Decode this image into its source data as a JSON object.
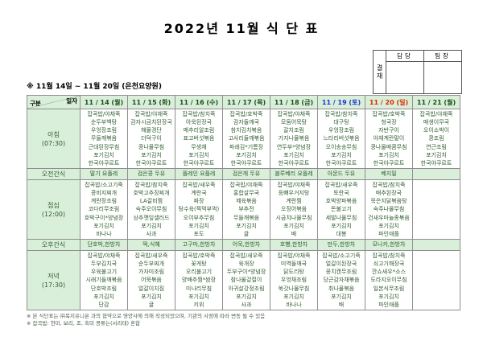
{
  "title": "2022년 11월 식 단 표",
  "subtitle": "※  11월 14일 ~ 11월 20일 (은천요양원)",
  "approval": {
    "label": "결재",
    "columns": [
      "담당",
      "팀장"
    ]
  },
  "colors": {
    "header_bg": "#d9efd9",
    "grid": "#8e8e8e",
    "date_default": "#1d4d1d",
    "date_sat": "#1f35cf",
    "date_sun": "#e02800",
    "menu_text": "#2f5d2f"
  },
  "table": {
    "corner": {
      "top": "일자",
      "bottom": "구분"
    },
    "days": [
      {
        "label": "11 / 14 (월)",
        "color": "default"
      },
      {
        "label": "11 / 15 (화)",
        "color": "default"
      },
      {
        "label": "11 / 16 (수)",
        "color": "default"
      },
      {
        "label": "11 / 17 (목)",
        "color": "default"
      },
      {
        "label": "11 / 18 (금)",
        "color": "default"
      },
      {
        "label": "11 / 19 (토)",
        "color": "sat"
      },
      {
        "label": "11 / 20 (일)",
        "color": "sun"
      },
      {
        "label": "11 / 21 (월)",
        "color": "default"
      }
    ],
    "rows": [
      {
        "label": "아침",
        "time": "(07:30)",
        "type": "meal",
        "cells": [
          [
            "잡곡밥/야채죽",
            "순두부백탕",
            "우엉장조림",
            "무들깨볶음",
            "근대된장무침",
            "포기김치",
            "한국야쿠르트"
          ],
          [
            "잡곡밥/야채죽",
            "감자시금치된장국",
            "해물경단",
            "더덕구이",
            "콩나물무침",
            "포기김치",
            "한국야쿠르트"
          ],
          [
            "잡곡밥/참치죽",
            "아욱된장국",
            "메추리알조림",
            "표고버섯볶음",
            "무생채",
            "포기김치",
            "한국야쿠르트"
          ],
          [
            "잡곡밥/호박죽",
            "감자들깨국",
            "참치김치볶음",
            "고사리들깨볶음",
            "파래김*기름장",
            "포기김치",
            "한국야쿠르트"
          ],
          [
            "잡곡밥/야채죽",
            "모둠어묵탕",
            "갈치조림",
            "가지나물볶음",
            "연두부*양념장",
            "포기김치",
            "한국야쿠르트"
          ],
          [
            "잡곡밥/참치죽",
            "대구탕",
            "우엉장조림",
            "느타리버섯볶음",
            "오이송송무침",
            "포기김치",
            "한국야쿠르트"
          ],
          [
            "잡곡밥/호박죽",
            "청국장",
            "자반구이",
            "야채계란말이",
            "콩나물매콤무침",
            "포기김치",
            "한국야쿠르트"
          ],
          [
            "잡곡밥/야채죽",
            "매생이무국",
            "오이소박이",
            "콩조림",
            "연근조림",
            "포기김치",
            "한국야쿠르트"
          ]
        ]
      },
      {
        "label": "오전간식",
        "type": "snack",
        "cells": [
          [
            "딸기 요플레"
          ],
          [
            "검은콩 두유"
          ],
          [
            "플레인 요플레"
          ],
          [
            "검은깨 두유"
          ],
          [
            "블루베리 요플레"
          ],
          [
            "아몬드 두유"
          ],
          [
            "베지밀"
          ],
          []
        ]
      },
      {
        "label": "점심",
        "time": "(12:00)",
        "type": "meal",
        "cells": [
          [
            "잡곡밥/소고기죽",
            "콩비지찌개",
            "계란장조림",
            "코다리무조림",
            "호박구이*양념장",
            "포기김치",
            "바나나"
          ],
          [
            "잡곡밥/참치죽",
            "호박고추장찌개",
            "LA갈비찜",
            "숙주오이무침",
            "상추깻잎샐러드",
            "포기김치",
            "사과"
          ],
          [
            "잡곡밥/새우죽",
            "계란국",
            "짜장",
            "탕수육(찍먹부먹)",
            "오이부추무침",
            "포기김치",
            "포도"
          ],
          [
            "잡곡밥/야채죽",
            "홍합살무국",
            "제육볶음",
            "부추전",
            "무들깨볶음",
            "포기김치",
            "귤"
          ],
          [
            "잡곡밥/야채죽",
            "등뼈우거지탕",
            "계란찜",
            "오징어볶음",
            "시금치나물무침",
            "포기김치",
            "배"
          ],
          [
            "잡곡밥/새우죽",
            "토란국",
            "호박양파볶음",
            "돈불고기",
            "세발나물무침",
            "포기김치",
            "대봉"
          ],
          [
            "잡곡밥/참치죽",
            "배추된장국",
            "묵은지닭볶음탕",
            "숙주나물무침",
            "건새우마늘종볶음",
            "포기김치",
            "파인애플"
          ],
          []
        ]
      },
      {
        "label": "오후간식",
        "type": "snack",
        "cells": [
          [
            "단호박,한방차"
          ],
          [
            "떡,식혜"
          ],
          [
            "고구마,한방차"
          ],
          [
            "어묵,한방차"
          ],
          [
            "호빵,한방차"
          ],
          [
            "만두,한방차"
          ],
          [
            "모나카,한방차"
          ],
          []
        ]
      },
      {
        "label": "저녁",
        "time": "(17:30)",
        "type": "meal",
        "cells": [
          [
            "잡곡밥/야채죽",
            "두부김치국",
            "우육불고기",
            "시래기들깨볶음",
            "단호박조림",
            "포기김치",
            "단감"
          ],
          [
            "잡곡밥/새우죽",
            "순두부찌개",
            "가자미조림",
            "어묵볶음",
            "얼갈이지짐",
            "포기김치",
            "귤"
          ],
          [
            "잡곡밥/호박죽",
            "꽃게탕",
            "오리불고기",
            "양배추찜*쌈장",
            "미나리무침",
            "포기김치",
            "키위"
          ],
          [
            "잡곡밥/새우죽",
            "육개장",
            "두부구이*양념장",
            "참나물겉절이",
            "아귀살강정조림",
            "포기김치",
            "사과"
          ],
          [
            "잡곡밥/야채죽",
            "미역들깨국",
            "닭도리탕",
            "우엉채조림",
            "쑥갓나물무침",
            "포기김치",
            "바나나"
          ],
          [
            "잡곡밥/소고기죽",
            "얼갈이된장국",
            "꽁치캔무조림",
            "당근감자채볶음",
            "취나물볶음",
            "포기김치",
            "배"
          ],
          [
            "잡곡밥/참치죽",
            "쇠고기해장국",
            "깐쇼새우*소스",
            "도라지오이무침",
            "일본식무조림",
            "포기김치",
            "파인애플"
          ],
          []
        ]
      }
    ]
  },
  "footnotes": [
    "※ 본 식단표는 ㈜복지유니온 과의 협약으로 영양사에 의해 작성되었으며, 기관의 사정에 따라 변동 될 수 있음",
    "※ 잡곡밥: 현미, 보리, 조, 흑미 콩류는(서리태) 혼합"
  ]
}
